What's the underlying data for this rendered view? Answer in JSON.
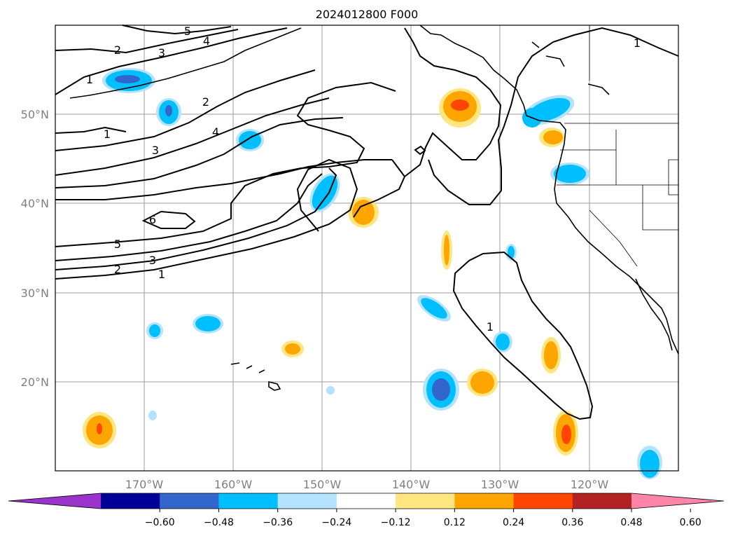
{
  "title": "2024012800 F000",
  "map": {
    "lon_labels": [
      "170°W",
      "160°W",
      "150°W",
      "140°W",
      "130°W",
      "120°W"
    ],
    "lat_labels": [
      "50°N",
      "40°N",
      "30°N",
      "20°N"
    ],
    "extent": {
      "lon": [
        -180,
        -110
      ],
      "lat": [
        10,
        60
      ]
    },
    "grid": true
  },
  "contour_labels": [
    "5",
    "4",
    "3",
    "2",
    "1",
    "2",
    "1",
    "3",
    "4",
    "6",
    "5",
    "3",
    "2",
    "1",
    "1",
    "1"
  ],
  "colorbar": {
    "ticks": [
      "−0.60",
      "−0.48",
      "−0.36",
      "−0.24",
      "−0.12",
      "0.12",
      "0.24",
      "0.36",
      "0.48",
      "0.60"
    ],
    "colors": [
      "#9933cc",
      "#000099",
      "#3366cc",
      "#00bfff",
      "#b3e3ff",
      "#ffffff",
      "#ffe680",
      "#ffa500",
      "#ff4500",
      "#b22222",
      "#ff85a8"
    ]
  }
}
